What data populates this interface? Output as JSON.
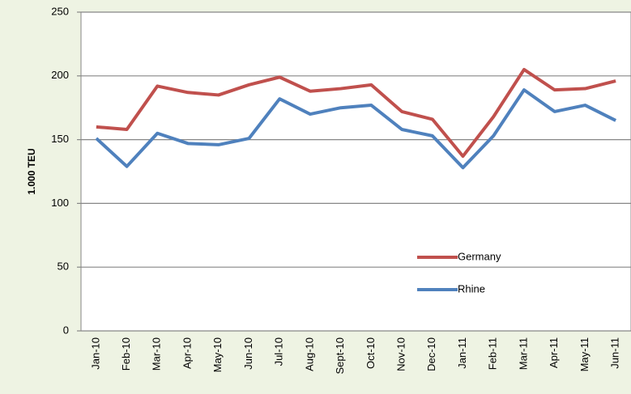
{
  "chart_data": {
    "type": "line",
    "y_label": "1.000 TEU",
    "categories": [
      "Jan-10",
      "Feb-10",
      "Mar-10",
      "Apr-10",
      "May-10",
      "Jun-10",
      "Jul-10",
      "Aug-10",
      "Sept-10",
      "Oct-10",
      "Nov-10",
      "Dec-10",
      "Jan-11",
      "Feb-11",
      "Mar-11",
      "Apr-11",
      "May-11",
      "Jun-11"
    ],
    "series": [
      {
        "name": "Germany",
        "color": "#c0504d",
        "values": [
          160,
          158,
          192,
          187,
          185,
          193,
          199,
          188,
          190,
          193,
          172,
          166,
          137,
          168,
          205,
          189,
          190,
          196
        ]
      },
      {
        "name": "Rhine",
        "color": "#4f81bd",
        "values": [
          151,
          129,
          155,
          147,
          146,
          151,
          182,
          170,
          175,
          177,
          158,
          153,
          128,
          153,
          189,
          172,
          177,
          165
        ]
      }
    ],
    "ylim": [
      0,
      250
    ],
    "yticks": [
      0,
      50,
      100,
      150,
      200,
      250
    ],
    "grid": true,
    "legend": "lower right"
  }
}
